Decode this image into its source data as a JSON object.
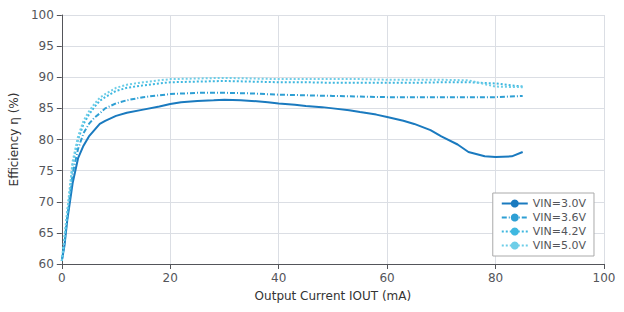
{
  "chart_data": {
    "type": "line",
    "xlabel": "Output Current IOUT (mA)",
    "ylabel": "Efficiency η (%)",
    "xlim": [
      0,
      100
    ],
    "ylim": [
      60,
      100
    ],
    "xticks": [
      0,
      20,
      40,
      60,
      80,
      100
    ],
    "yticks": [
      60,
      65,
      70,
      75,
      80,
      85,
      90,
      95,
      100
    ],
    "grid": true,
    "legend": "lower right",
    "series": [
      {
        "name": "VIN=3.0V",
        "color": "#1a7abf",
        "line_style": "solid",
        "x": [
          0,
          0.5,
          1,
          1.5,
          2,
          3,
          4,
          5,
          6,
          7,
          8,
          10,
          12,
          15,
          18,
          20,
          22,
          25,
          28,
          30,
          33,
          35,
          38,
          40,
          43,
          45,
          48,
          50,
          53,
          55,
          58,
          60,
          63,
          65,
          68,
          70,
          73,
          75,
          78,
          80,
          83,
          85
        ],
        "values": [
          60.5,
          63,
          67,
          70,
          73,
          77,
          79,
          80.5,
          81.5,
          82.5,
          83,
          83.8,
          84.3,
          84.8,
          85.3,
          85.7,
          86,
          86.2,
          86.3,
          86.4,
          86.3,
          86.2,
          86,
          85.8,
          85.6,
          85.4,
          85.2,
          85,
          84.7,
          84.4,
          84,
          83.6,
          83,
          82.5,
          81.5,
          80.5,
          79.2,
          78,
          77.3,
          77.2,
          77.3,
          78
        ]
      },
      {
        "name": "VIN=3.6V",
        "color": "#2e9fd4",
        "line_style": "dashdot",
        "x": [
          0,
          0.5,
          1,
          1.5,
          2,
          3,
          4,
          5,
          6,
          7,
          8,
          10,
          12,
          15,
          18,
          20,
          25,
          30,
          35,
          40,
          45,
          50,
          55,
          60,
          65,
          70,
          75,
          80,
          85
        ],
        "values": [
          60.5,
          63.5,
          67.5,
          71,
          74.5,
          78.5,
          81,
          82.5,
          83.5,
          84.2,
          85,
          85.8,
          86.3,
          86.8,
          87.1,
          87.3,
          87.5,
          87.5,
          87.4,
          87.2,
          87.1,
          87.0,
          86.9,
          86.8,
          86.8,
          86.8,
          86.8,
          86.8,
          87
        ]
      },
      {
        "name": "VIN=4.2V",
        "color": "#3fb8e0",
        "line_style": "dotted",
        "x": [
          0,
          0.5,
          1,
          1.5,
          2,
          3,
          4,
          5,
          6,
          7,
          8,
          10,
          12,
          15,
          18,
          20,
          25,
          30,
          35,
          40,
          45,
          50,
          55,
          60,
          65,
          70,
          75,
          80,
          85
        ],
        "values": [
          60.5,
          64,
          68,
          72,
          76,
          80,
          82.5,
          84,
          85.2,
          86.2,
          86.8,
          87.8,
          88.3,
          88.7,
          89.0,
          89.2,
          89.3,
          89.4,
          89.3,
          89.2,
          89.2,
          89.1,
          89.1,
          89.1,
          89.1,
          89.2,
          89.2,
          89.0,
          88.5
        ]
      },
      {
        "name": "VIN=5.0V",
        "color": "#6dcee8",
        "line_style": "dotted",
        "x": [
          0,
          0.5,
          1,
          1.5,
          2,
          3,
          4,
          5,
          6,
          7,
          8,
          10,
          12,
          15,
          18,
          20,
          25,
          30,
          35,
          40,
          45,
          50,
          55,
          60,
          65,
          70,
          75,
          80,
          85
        ],
        "values": [
          60.5,
          64.5,
          68.5,
          72.5,
          76.5,
          80.5,
          83,
          84.5,
          85.7,
          86.7,
          87.3,
          88.3,
          88.8,
          89.2,
          89.5,
          89.7,
          89.8,
          89.9,
          89.8,
          89.7,
          89.7,
          89.7,
          89.7,
          89.6,
          89.6,
          89.6,
          89.5,
          88.5,
          88.4
        ]
      }
    ]
  }
}
